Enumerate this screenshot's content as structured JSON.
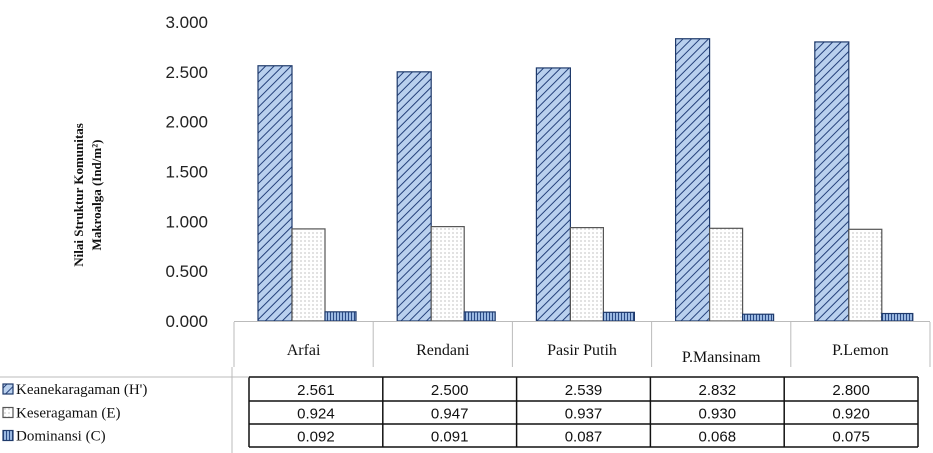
{
  "chart_data": {
    "type": "bar",
    "ylabel_line1": "Nilai Struktur  Komunitas",
    "ylabel_line2": "Makroalga (Ind/m²)",
    "ylim": [
      0,
      3
    ],
    "yticks": [
      "0.000",
      "0.500",
      "1.000",
      "1.500",
      "2.000",
      "2.500",
      "3.000"
    ],
    "categories": [
      "Arfai",
      "Rendani",
      "Pasir Putih",
      "P.Mansinam",
      "P.Lemon"
    ],
    "series": [
      {
        "name": "Keanekaragaman (H')",
        "values": [
          2.561,
          2.5,
          2.539,
          2.832,
          2.8
        ],
        "labels": [
          "2.561",
          "2.500",
          "2.539",
          "2.832",
          "2.800"
        ],
        "pattern": "diagonal-hatch",
        "color": "#a9c4e8",
        "stroke": "#1f3a6b"
      },
      {
        "name": "Keseragaman (E)",
        "values": [
          0.924,
          0.947,
          0.937,
          0.93,
          0.92
        ],
        "labels": [
          "0.924",
          "0.947",
          "0.937",
          "0.930",
          "0.920"
        ],
        "pattern": "dots",
        "color": "#ffffff",
        "stroke": "#555555"
      },
      {
        "name": "Dominansi (C)",
        "values": [
          0.092,
          0.091,
          0.087,
          0.068,
          0.075
        ],
        "labels": [
          "0.092",
          "0.091",
          "0.087",
          "0.068",
          "0.075"
        ],
        "pattern": "vertical-stripes",
        "color": "#8fb0dc",
        "stroke": "#1f3a6b"
      }
    ],
    "grid": false,
    "legend": "data-table"
  }
}
